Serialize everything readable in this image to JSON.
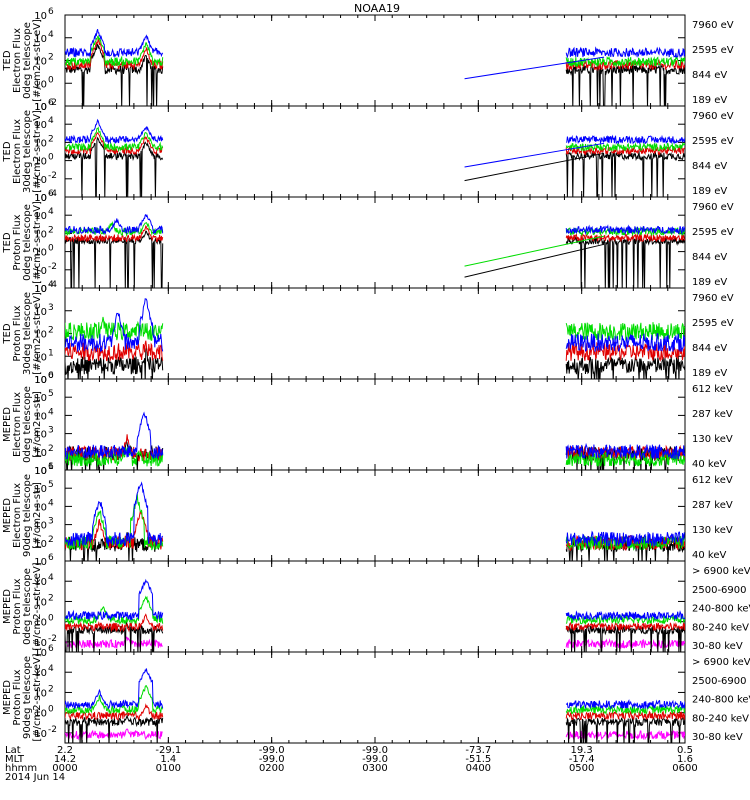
{
  "title": "NOAA19",
  "colors": {
    "black": "#000000",
    "red": "#e00000",
    "green": "#00dd00",
    "blue": "#0000ff",
    "magenta": "#ff00ff"
  },
  "chart_data": {
    "type": "line",
    "title": "NOAA19",
    "x_range_minutes": [
      0,
      360
    ],
    "x_tick_minutes": [
      0,
      60,
      120,
      180,
      240,
      300,
      360
    ],
    "x_axis_rows": [
      {
        "label": "Lat",
        "values": [
          "2.2",
          "-29.1",
          "-99.0",
          "-99.0",
          "-73.7",
          "19.3",
          "0.5"
        ]
      },
      {
        "label": "MLT",
        "values": [
          "14.2",
          "1.4",
          "-99.0",
          "-99.0",
          "-51.5",
          "-17.4",
          "1.6"
        ]
      },
      {
        "label": "hhmm",
        "values": [
          "0000",
          "0100",
          "0200",
          "0300",
          "0400",
          "0500",
          "0600"
        ]
      }
    ],
    "date_label": "2014 Jun 14",
    "panels": [
      {
        "ylabel": [
          "TED",
          "Electron Flux",
          "0deg telescope",
          "[#/cm2-s-str-eV]"
        ],
        "ylog_range": [
          -2,
          6
        ],
        "yticks": [
          {
            "exp": "-2",
            "v": -2
          },
          {
            "exp": "0",
            "v": 0
          },
          {
            "exp": "2",
            "v": 2
          },
          {
            "exp": "4",
            "v": 4
          },
          {
            "exp": "6",
            "v": 6
          }
        ],
        "legend": [
          {
            "text": "7960 eV",
            "color": "black"
          },
          {
            "text": "2595 eV",
            "color": "red"
          },
          {
            "text": "844 eV",
            "color": "green"
          },
          {
            "text": "189 eV",
            "color": "blue"
          }
        ],
        "series": [
          {
            "color": "black",
            "level": 1.2,
            "gap_line": null,
            "spikes": [
              {
                "t": 19,
                "v": 3.4
              },
              {
                "t": 47,
                "v": 2.4
              }
            ]
          },
          {
            "color": "red",
            "level": 1.6,
            "gap_line": null,
            "spikes": [
              {
                "t": 19,
                "v": 3.8
              },
              {
                "t": 47,
                "v": 3.0
              }
            ]
          },
          {
            "color": "green",
            "level": 1.9,
            "gap_line": null,
            "spikes": [
              {
                "t": 19,
                "v": 4.2
              },
              {
                "t": 47,
                "v": 3.5
              }
            ]
          },
          {
            "color": "blue",
            "level": 2.7,
            "gap_line": {
              "from": [
                232,
                0.4
              ],
              "to": [
                313,
                2.3
              ]
            },
            "spikes": [
              {
                "t": 19,
                "v": 4.6
              },
              {
                "t": 47,
                "v": 4.2
              }
            ]
          }
        ]
      },
      {
        "ylabel": [
          "TED",
          "Electron Flux",
          "30deg telescope",
          "[#/cm2-s-str-eV]"
        ],
        "ylog_range": [
          -4,
          6
        ],
        "yticks": [
          {
            "exp": "-4",
            "v": -4
          },
          {
            "exp": "-2",
            "v": -2
          },
          {
            "exp": "0",
            "v": 0
          },
          {
            "exp": "2",
            "v": 2
          },
          {
            "exp": "4",
            "v": 4
          },
          {
            "exp": "6",
            "v": 6
          }
        ],
        "legend": [
          {
            "text": "7960 eV",
            "color": "black"
          },
          {
            "text": "2595 eV",
            "color": "red"
          },
          {
            "text": "844 eV",
            "color": "green"
          },
          {
            "text": "189 eV",
            "color": "blue"
          }
        ],
        "series": [
          {
            "color": "black",
            "level": 0.5,
            "gap_line": {
              "from": [
                232,
                -2.2
              ],
              "to": [
                313,
                0.8
              ]
            },
            "spikes": [
              {
                "t": 19,
                "v": 2.5
              },
              {
                "t": 47,
                "v": 2.0
              }
            ]
          },
          {
            "color": "red",
            "level": 1.1,
            "gap_line": null,
            "spikes": [
              {
                "t": 19,
                "v": 3.0
              },
              {
                "t": 47,
                "v": 2.6
              }
            ]
          },
          {
            "color": "green",
            "level": 1.5,
            "gap_line": null,
            "spikes": [
              {
                "t": 19,
                "v": 3.5
              },
              {
                "t": 47,
                "v": 3.1
              }
            ]
          },
          {
            "color": "blue",
            "level": 2.3,
            "gap_line": {
              "from": [
                232,
                -0.7
              ],
              "to": [
                313,
                1.9
              ]
            },
            "spikes": [
              {
                "t": 19,
                "v": 4.3
              },
              {
                "t": 47,
                "v": 3.8
              }
            ]
          }
        ]
      },
      {
        "ylabel": [
          "TED",
          "Proton Flux",
          "0deg telescope",
          "[#/cm2-s-str-eV]"
        ],
        "ylog_range": [
          -4,
          6
        ],
        "yticks": [
          {
            "exp": "-4",
            "v": -4
          },
          {
            "exp": "-2",
            "v": -2
          },
          {
            "exp": "0",
            "v": 0
          },
          {
            "exp": "2",
            "v": 2
          },
          {
            "exp": "4",
            "v": 4
          },
          {
            "exp": "6",
            "v": 6
          }
        ],
        "legend": [
          {
            "text": "7960 eV",
            "color": "black"
          },
          {
            "text": "2595 eV",
            "color": "red"
          },
          {
            "text": "844 eV",
            "color": "green"
          },
          {
            "text": "189 eV",
            "color": "blue"
          }
        ],
        "series": [
          {
            "color": "black",
            "level": 1.2,
            "gap_line": {
              "from": [
                232,
                -2.8
              ],
              "to": [
                313,
                0.8
              ]
            },
            "spikes": [
              {
                "t": 47,
                "v": 2.2
              }
            ]
          },
          {
            "color": "red",
            "level": 1.5,
            "gap_line": null,
            "spikes": [
              {
                "t": 47,
                "v": 2.8
              }
            ]
          },
          {
            "color": "green",
            "level": 2.2,
            "gap_line": {
              "from": [
                232,
                -1.6
              ],
              "to": [
                313,
                1.7
              ]
            },
            "spikes": [
              {
                "t": 27,
                "v": 3.2
              },
              {
                "t": 47,
                "v": 3.3
              }
            ]
          },
          {
            "color": "blue",
            "level": 2.4,
            "gap_line": null,
            "spikes": [
              {
                "t": 30,
                "v": 3.5
              },
              {
                "t": 47,
                "v": 4.1
              }
            ]
          }
        ]
      },
      {
        "ylabel": [
          "TED",
          "Proton Flux",
          "30deg telescope",
          "[#/cm2-s-str-eV]"
        ],
        "ylog_range": [
          0,
          4
        ],
        "yticks": [
          {
            "exp": "0",
            "v": 0
          },
          {
            "exp": "1",
            "v": 1
          },
          {
            "exp": "2",
            "v": 2
          },
          {
            "exp": "3",
            "v": 3
          },
          {
            "exp": "4",
            "v": 4
          }
        ],
        "legend": [
          {
            "text": "7960 eV",
            "color": "black"
          },
          {
            "text": "2595 eV",
            "color": "red"
          },
          {
            "text": "844 eV",
            "color": "green"
          },
          {
            "text": "189 eV",
            "color": "blue"
          }
        ],
        "series": [
          {
            "color": "black",
            "level": 0.6,
            "gap_line": null,
            "spikes": [
              {
                "t": 47,
                "v": 1.3
              }
            ]
          },
          {
            "color": "red",
            "level": 1.2,
            "gap_line": null,
            "spikes": [
              {
                "t": 47,
                "v": 1.6
              }
            ]
          },
          {
            "color": "green",
            "level": 2.1,
            "gap_line": null,
            "spikes": [
              {
                "t": 22,
                "v": 2.6
              },
              {
                "t": 57,
                "v": 2.6
              }
            ]
          },
          {
            "color": "blue",
            "level": 1.6,
            "gap_line": null,
            "spikes": [
              {
                "t": 31,
                "v": 3.0
              },
              {
                "t": 47,
                "v": 3.6
              }
            ]
          }
        ]
      },
      {
        "ylabel": [
          "MEPED",
          "Electron Flux",
          "0deg telescope",
          "[#/cm2-s-str]"
        ],
        "ylog_range": [
          1,
          6
        ],
        "yticks": [
          {
            "exp": "1",
            "v": 1
          },
          {
            "exp": "2",
            "v": 2
          },
          {
            "exp": "3",
            "v": 3
          },
          {
            "exp": "4",
            "v": 4
          },
          {
            "exp": "5",
            "v": 5
          },
          {
            "exp": "6",
            "v": 6
          }
        ],
        "legend": [
          {
            "text": "612 keV",
            "color": "black"
          },
          {
            "text": "287 keV",
            "color": "red"
          },
          {
            "text": "130 keV",
            "color": "green"
          },
          {
            "text": "40 keV",
            "color": "blue"
          }
        ],
        "series": [
          {
            "color": "black",
            "level": 1.9,
            "gap_line": null,
            "spikes": [
              {
                "t": 36,
                "v": 2.6
              }
            ]
          },
          {
            "color": "red",
            "level": 1.9,
            "gap_line": null,
            "spikes": [
              {
                "t": 36,
                "v": 2.8
              }
            ]
          },
          {
            "color": "green",
            "level": 1.6,
            "gap_line": null,
            "spikes": [
              {
                "t": 36,
                "v": 2.3
              }
            ]
          },
          {
            "color": "blue",
            "level": 2.0,
            "gap_line": null,
            "spikes": [
              {
                "t": 46,
                "v": 4.2
              }
            ]
          }
        ]
      },
      {
        "ylabel": [
          "MEPED",
          "Electron Flux",
          "90deg telescope",
          "[#/cm2-s-str]"
        ],
        "ylog_range": [
          1,
          6
        ],
        "yticks": [
          {
            "exp": "2",
            "v": 2
          },
          {
            "exp": "3",
            "v": 3
          },
          {
            "exp": "4",
            "v": 4
          },
          {
            "exp": "5",
            "v": 5
          },
          {
            "exp": "6",
            "v": 6
          }
        ],
        "legend": [
          {
            "text": "612 keV",
            "color": "black"
          },
          {
            "text": "287 keV",
            "color": "red"
          },
          {
            "text": "130 keV",
            "color": "green"
          },
          {
            "text": "40 keV",
            "color": "blue"
          }
        ],
        "series": [
          {
            "color": "black",
            "level": 1.9,
            "gap_line": null,
            "spikes": [
              {
                "t": 36,
                "v": 2.5
              }
            ]
          },
          {
            "color": "red",
            "level": 2.0,
            "gap_line": null,
            "spikes": [
              {
                "t": 20,
                "v": 3.2
              },
              {
                "t": 44,
                "v": 3.8
              }
            ]
          },
          {
            "color": "green",
            "level": 2.0,
            "gap_line": null,
            "spikes": [
              {
                "t": 20,
                "v": 3.8
              },
              {
                "t": 42,
                "v": 4.5
              }
            ]
          },
          {
            "color": "blue",
            "level": 2.2,
            "gap_line": null,
            "spikes": [
              {
                "t": 20,
                "v": 4.4
              },
              {
                "t": 44,
                "v": 5.3
              }
            ]
          }
        ]
      },
      {
        "ylabel": [
          "MEPED",
          "Proton Flux",
          "0deg telescope",
          "[#/cm2-s-str-keV]"
        ],
        "ylog_range": [
          -3,
          6
        ],
        "yticks": [
          {
            "exp": "-2",
            "v": -2
          },
          {
            "exp": "0",
            "v": 0
          },
          {
            "exp": "2",
            "v": 2
          },
          {
            "exp": "4",
            "v": 4
          },
          {
            "exp": "6",
            "v": 6
          }
        ],
        "legend": [
          {
            "text": "> 6900 keV",
            "color": "magenta"
          },
          {
            "text": "2500-6900",
            "color": "black"
          },
          {
            "text": "240-800 keV",
            "color": "red"
          },
          {
            "text": "80-240 keV",
            "color": "green"
          },
          {
            "text": "30-80 keV",
            "color": "blue"
          }
        ],
        "series": [
          {
            "color": "magenta",
            "level": -2.2,
            "gap_line": null,
            "spikes": [
              {
                "t": 36,
                "v": -1.5
              }
            ]
          },
          {
            "color": "black",
            "level": -0.8,
            "gap_line": null,
            "spikes": [
              {
                "t": 36,
                "v": -0.2
              }
            ]
          },
          {
            "color": "red",
            "level": -0.5,
            "gap_line": null,
            "spikes": [
              {
                "t": 47,
                "v": 0.6
              }
            ]
          },
          {
            "color": "green",
            "level": 0.2,
            "gap_line": null,
            "spikes": [
              {
                "t": 22,
                "v": 1.5
              },
              {
                "t": 47,
                "v": 2.4
              }
            ]
          },
          {
            "color": "blue",
            "level": 0.6,
            "gap_line": null,
            "spikes": [
              {
                "t": 47,
                "v": 4.1
              }
            ]
          }
        ]
      },
      {
        "ylabel": [
          "MEPED",
          "Proton Flux",
          "90deg telescope",
          "[#/cm2-s-str-keV]"
        ],
        "ylog_range": [
          -3,
          6
        ],
        "yticks": [
          {
            "exp": "-2",
            "v": -2
          },
          {
            "exp": "0",
            "v": 0
          },
          {
            "exp": "2",
            "v": 2
          },
          {
            "exp": "4",
            "v": 4
          },
          {
            "exp": "6",
            "v": 6
          }
        ],
        "legend": [
          {
            "text": "> 6900 keV",
            "color": "magenta"
          },
          {
            "text": "2500-6900",
            "color": "black"
          },
          {
            "text": "240-800 keV",
            "color": "red"
          },
          {
            "text": "80-240 keV",
            "color": "green"
          },
          {
            "text": "30-80 keV",
            "color": "blue"
          }
        ],
        "series": [
          {
            "color": "magenta",
            "level": -2.2,
            "gap_line": null,
            "spikes": [
              {
                "t": 36,
                "v": -1.6
              }
            ]
          },
          {
            "color": "black",
            "level": -0.9,
            "gap_line": null,
            "spikes": [
              {
                "t": 36,
                "v": -0.3
              }
            ]
          },
          {
            "color": "red",
            "level": -0.3,
            "gap_line": null,
            "spikes": [
              {
                "t": 47,
                "v": 0.8
              }
            ]
          },
          {
            "color": "green",
            "level": 0.3,
            "gap_line": null,
            "spikes": [
              {
                "t": 20,
                "v": 1.5
              },
              {
                "t": 47,
                "v": 2.6
              }
            ]
          },
          {
            "color": "blue",
            "level": 0.8,
            "gap_line": null,
            "spikes": [
              {
                "t": 20,
                "v": 2.1
              },
              {
                "t": 47,
                "v": 4.3
              }
            ]
          }
        ]
      }
    ],
    "data_segments_minutes": [
      [
        0,
        57
      ],
      [
        291,
        360
      ]
    ]
  }
}
